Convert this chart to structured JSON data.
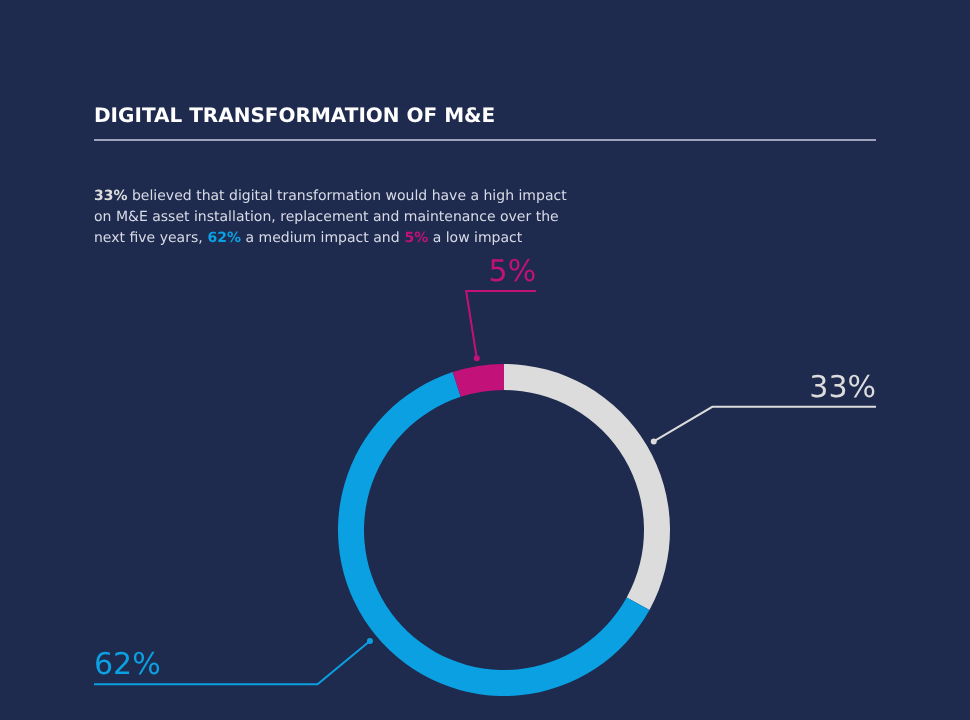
{
  "chart_data": {
    "type": "donut",
    "title": "DIGITAL TRANSFORMATION OF M&E",
    "subtitle": "33% believed that digital transformation would have a high impact on M&E asset installation, replacement and maintenance over the next five years, 62% a medium impact and 5% a low impact",
    "categories": [
      null,
      null,
      null
    ],
    "values": [
      33,
      62,
      5
    ],
    "colors": [
      "#dcdcdc",
      "#0ba0e2",
      "#c2127a"
    ],
    "value_labels": [
      "33%",
      "62%",
      "5%"
    ]
  }
}
